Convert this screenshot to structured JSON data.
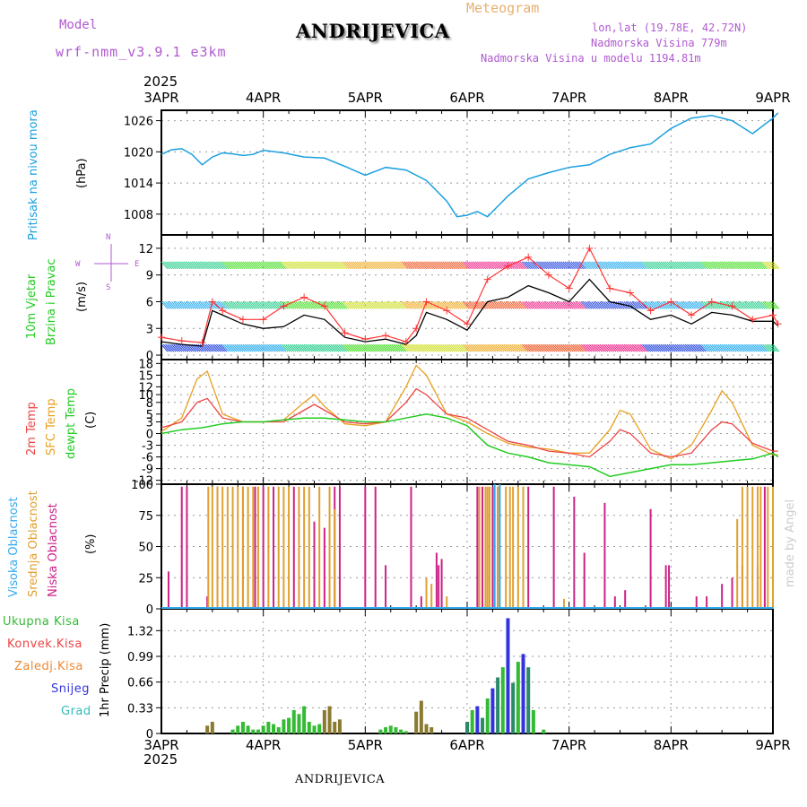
{
  "header": {
    "model_label": "Model",
    "model_name": "wrf-nmm_v3.9.1 e3km",
    "title": "ANDRIJEVICA",
    "meteogram": "Meteogram",
    "lonlat": "lon,lat (19.78E, 42.72N)",
    "elevation": "Nadmorska Visina 779m",
    "model_elevation": "Nadmorska Visina u modelu 1194.81m",
    "footer_title": "ANDRIJEVICA",
    "credit": "made by Angel"
  },
  "colors": {
    "pressure": "#1aa0e0",
    "wind_label": "#22cc22",
    "wind_speed": "#000000",
    "gust": "#ff3333",
    "temp2m": "#ee4444",
    "sfc": "#e8a020",
    "dew": "#22cc22",
    "cloud_high": "#33aaee",
    "cloud_mid": "#e0a030",
    "cloud_low": "#cc2288",
    "precip_total": "#33bb33",
    "precip_conv": "#ee4444",
    "precip_frozen": "#ee8833",
    "precip_snow": "#3333dd",
    "precip_graupel": "#33bbbb"
  },
  "time_axis": {
    "year": "2025",
    "labels": [
      "3APR",
      "4APR",
      "5APR",
      "6APR",
      "7APR",
      "8APR",
      "9APR"
    ]
  },
  "chart_data": [
    {
      "type": "line",
      "name": "pressure",
      "title": "Pritisak na nivou mora",
      "ylabel": "(hPa)",
      "ylim": [
        1004,
        1028
      ],
      "yticks": [
        1008,
        1014,
        1020,
        1026
      ],
      "x": [
        0,
        0.1,
        0.2,
        0.3,
        0.4,
        0.5,
        0.6,
        0.7,
        0.8,
        0.9,
        1,
        1.2,
        1.4,
        1.6,
        1.8,
        2,
        2.2,
        2.4,
        2.6,
        2.8,
        2.9,
        3,
        3.1,
        3.2,
        3.3,
        3.4,
        3.6,
        3.8,
        4,
        4.2,
        4.4,
        4.6,
        4.8,
        5,
        5.2,
        5.4,
        5.6,
        5.8,
        6,
        6.05
      ],
      "values": [
        1019.5,
        1020.4,
        1020.6,
        1019.5,
        1017.5,
        1019.0,
        1019.8,
        1019.6,
        1019.3,
        1019.5,
        1020.3,
        1019.8,
        1019.0,
        1018.8,
        1017.2,
        1015.5,
        1017.0,
        1016.5,
        1014.5,
        1010.5,
        1007.5,
        1007.8,
        1008.5,
        1007.5,
        1009.5,
        1011.5,
        1014.8,
        1016.0,
        1017.0,
        1017.5,
        1019.5,
        1020.8,
        1021.5,
        1024.5,
        1026.5,
        1027.0,
        1026.0,
        1023.5,
        1026.5,
        1027.5
      ]
    },
    {
      "type": "line",
      "name": "wind",
      "title": "10m Vjetar",
      "title2": "Brzina i Pravac",
      "ylabel": "(m/s)",
      "compass": [
        "N",
        "E",
        "S",
        "W"
      ],
      "ylim": [
        -0.5,
        13.5
      ],
      "yticks": [
        0,
        3,
        6,
        9,
        12
      ],
      "series": [
        {
          "name": "speed",
          "x": [
            0,
            0.2,
            0.4,
            0.5,
            0.6,
            0.8,
            1.0,
            1.2,
            1.4,
            1.6,
            1.8,
            2.0,
            2.2,
            2.4,
            2.5,
            2.6,
            2.8,
            3.0,
            3.2,
            3.4,
            3.6,
            3.8,
            4.0,
            4.2,
            4.4,
            4.6,
            4.8,
            5.0,
            5.2,
            5.4,
            5.6,
            5.8,
            6.0,
            6.05
          ],
          "values": [
            1.5,
            1.2,
            1.0,
            5.0,
            4.5,
            3.5,
            3.0,
            3.2,
            4.5,
            4.0,
            2.0,
            1.5,
            1.8,
            1.2,
            2.2,
            4.8,
            4.0,
            2.8,
            6.0,
            6.5,
            7.8,
            7.0,
            6.0,
            8.5,
            6.0,
            5.5,
            4.0,
            4.5,
            3.5,
            4.8,
            4.5,
            3.8,
            3.8,
            3.3
          ]
        },
        {
          "name": "gust",
          "x": [
            0,
            0.2,
            0.4,
            0.5,
            0.6,
            0.8,
            1.0,
            1.2,
            1.4,
            1.6,
            1.8,
            2.0,
            2.2,
            2.4,
            2.5,
            2.6,
            2.8,
            3.0,
            3.2,
            3.4,
            3.6,
            3.8,
            4.0,
            4.2,
            4.4,
            4.6,
            4.8,
            5.0,
            5.2,
            5.4,
            5.6,
            5.8,
            6.0,
            6.05
          ],
          "values": [
            2.0,
            1.6,
            1.4,
            6.0,
            5.0,
            4.0,
            4.0,
            5.5,
            6.5,
            5.5,
            2.5,
            1.8,
            2.2,
            1.5,
            3.0,
            6.0,
            5.0,
            3.5,
            8.5,
            10.0,
            11.0,
            9.0,
            7.5,
            12.0,
            7.5,
            7.0,
            5.0,
            6.0,
            4.5,
            6.0,
            5.5,
            4.0,
            4.5,
            3.5
          ]
        }
      ]
    },
    {
      "type": "line",
      "name": "temperature",
      "titles": [
        "2m Temp",
        "SFC Temp",
        "dewpt Temp"
      ],
      "ylabel": "(C)",
      "ylim": [
        -13,
        19
      ],
      "yticks": [
        -12,
        -9,
        -6,
        -3,
        0,
        3,
        5,
        8,
        10,
        12,
        15,
        18
      ],
      "series": [
        {
          "name": "2m Temp",
          "x": [
            0,
            0.2,
            0.35,
            0.45,
            0.6,
            0.8,
            1.0,
            1.2,
            1.4,
            1.5,
            1.6,
            1.8,
            2.0,
            2.2,
            2.4,
            2.5,
            2.6,
            2.8,
            3.0,
            3.2,
            3.4,
            3.6,
            3.8,
            4.0,
            4.2,
            4.4,
            4.5,
            4.6,
            4.8,
            5.0,
            5.2,
            5.4,
            5.5,
            5.6,
            5.8,
            6.0,
            6.05
          ],
          "values": [
            1.5,
            3.0,
            8.0,
            9.0,
            4.0,
            3.0,
            3.0,
            3.0,
            6.0,
            7.5,
            6.0,
            3.0,
            2.5,
            3.0,
            8.0,
            11.5,
            10.0,
            5.0,
            4.0,
            1.0,
            -2.0,
            -3.0,
            -4.5,
            -5.0,
            -6.0,
            -2.0,
            1.0,
            0.0,
            -5.0,
            -6.0,
            -5.0,
            1.0,
            3.0,
            2.5,
            -2.5,
            -4.5,
            -4.5
          ]
        },
        {
          "name": "SFC Temp",
          "x": [
            0,
            0.2,
            0.35,
            0.45,
            0.6,
            0.8,
            1.0,
            1.2,
            1.4,
            1.5,
            1.6,
            1.8,
            2.0,
            2.2,
            2.4,
            2.5,
            2.6,
            2.8,
            3.0,
            3.2,
            3.4,
            3.6,
            3.8,
            4.0,
            4.2,
            4.4,
            4.5,
            4.6,
            4.8,
            5.0,
            5.2,
            5.4,
            5.5,
            5.6,
            5.8,
            6.0,
            6.05
          ],
          "values": [
            0.5,
            4.0,
            14.0,
            16.0,
            5.0,
            3.0,
            3.0,
            3.5,
            8.0,
            10.0,
            7.0,
            2.5,
            2.0,
            3.0,
            12.0,
            17.5,
            15.0,
            5.0,
            3.0,
            0.0,
            -2.5,
            -3.5,
            -4.0,
            -5.0,
            -5.0,
            1.0,
            6.0,
            5.0,
            -4.0,
            -6.5,
            -3.0,
            6.0,
            11.0,
            8.0,
            -3.0,
            -5.5,
            -5.5
          ]
        },
        {
          "name": "dewpt Temp",
          "x": [
            0,
            0.2,
            0.4,
            0.6,
            0.8,
            1.0,
            1.2,
            1.4,
            1.6,
            1.8,
            2.0,
            2.2,
            2.4,
            2.6,
            2.8,
            3.0,
            3.2,
            3.4,
            3.6,
            3.8,
            4.0,
            4.2,
            4.4,
            4.6,
            4.8,
            5.0,
            5.2,
            5.4,
            5.6,
            5.8,
            6.0,
            6.05
          ],
          "values": [
            0.0,
            1.0,
            1.5,
            2.5,
            3.0,
            3.0,
            3.5,
            4.0,
            4.0,
            3.5,
            3.0,
            3.0,
            4.0,
            5.0,
            4.0,
            2.0,
            -3.0,
            -5.0,
            -6.0,
            -7.5,
            -8.0,
            -8.5,
            -11.0,
            -10.0,
            -9.0,
            -8.0,
            -8.0,
            -7.5,
            -7.0,
            -6.5,
            -5.0,
            -6.0
          ]
        }
      ]
    },
    {
      "type": "bar",
      "name": "cloud_cover",
      "titles": [
        "Visoka Oblacnost",
        "Srednja Oblacnost",
        "Niska Oblacnost"
      ],
      "ylabel": "(%)",
      "ylim": [
        0,
        100
      ],
      "yticks": [
        0,
        25,
        50,
        75,
        100
      ],
      "series": [
        {
          "name": "Niska",
          "x": [
            0.07,
            0.2,
            0.25,
            0.45,
            0.55,
            0.8,
            0.92,
            1.0,
            1.1,
            1.3,
            1.5,
            1.6,
            1.7,
            1.75,
            2.0,
            2.1,
            2.2,
            2.45,
            2.55,
            2.7,
            2.72,
            2.75,
            3.1,
            3.15,
            3.25,
            3.3,
            3.6,
            3.85,
            4.05,
            4.15,
            4.35,
            4.45,
            4.55,
            4.8,
            4.95,
            4.98,
            5.25,
            5.35,
            5.5,
            5.6,
            5.7,
            5.85,
            5.92,
            6.0
          ],
          "values": [
            30,
            98,
            98,
            10,
            98,
            98,
            98,
            98,
            98,
            98,
            70,
            65,
            98,
            98,
            98,
            98,
            35,
            98,
            10,
            45,
            35,
            40,
            98,
            98,
            98,
            98,
            98,
            98,
            90,
            45,
            85,
            10,
            15,
            80,
            35,
            35,
            10,
            10,
            20,
            25,
            35,
            35,
            98,
            10
          ]
        },
        {
          "name": "Srednja",
          "x": [
            0.46,
            0.5,
            0.55,
            0.6,
            0.65,
            0.7,
            0.75,
            0.8,
            0.85,
            0.9,
            0.95,
            1.05,
            1.15,
            1.2,
            1.25,
            1.35,
            1.4,
            1.45,
            1.55,
            1.65,
            1.7,
            2.6,
            2.65,
            2.8,
            3.12,
            3.18,
            3.2,
            3.22,
            3.3,
            3.38,
            3.42,
            3.45,
            3.5,
            3.55,
            3.95,
            5.65,
            5.7,
            5.75,
            5.8,
            5.85,
            5.88,
            5.95,
            6.0
          ],
          "values": [
            98,
            98,
            98,
            98,
            98,
            98,
            98,
            98,
            98,
            98,
            98,
            98,
            98,
            98,
            98,
            98,
            98,
            98,
            98,
            98,
            80,
            25,
            20,
            10,
            98,
            98,
            98,
            98,
            98,
            98,
            98,
            98,
            98,
            98,
            8,
            72,
            98,
            98,
            98,
            98,
            98,
            98,
            98
          ]
        },
        {
          "name": "Visoka",
          "x": [
            3.27,
            3.32
          ],
          "values": [
            100,
            100
          ]
        }
      ]
    },
    {
      "type": "bar",
      "name": "precipitation",
      "titles": [
        "Ukupna Kisa",
        "Konvek.Kisa",
        "Zaledj.Kisa",
        "Snijeg",
        "Grad"
      ],
      "ylabel": "1hr Precip (mm)",
      "ylim": [
        0,
        1.6
      ],
      "yticks": [
        0,
        0.33,
        0.66,
        0.99,
        1.32
      ],
      "x": [
        0.45,
        0.5,
        0.7,
        0.75,
        0.8,
        0.85,
        0.9,
        0.95,
        1.0,
        1.05,
        1.1,
        1.15,
        1.2,
        1.25,
        1.3,
        1.35,
        1.4,
        1.45,
        1.5,
        1.55,
        1.6,
        1.65,
        1.7,
        1.75,
        2.15,
        2.2,
        2.25,
        2.3,
        2.35,
        2.4,
        2.5,
        2.55,
        2.6,
        2.65,
        3.0,
        3.05,
        3.1,
        3.15,
        3.2,
        3.25,
        3.3,
        3.35,
        3.4,
        3.45,
        3.5,
        3.55,
        3.6,
        3.65,
        3.75
      ],
      "values": [
        0.1,
        0.15,
        0.05,
        0.1,
        0.15,
        0.1,
        0.05,
        0.05,
        0.1,
        0.15,
        0.12,
        0.08,
        0.18,
        0.2,
        0.3,
        0.25,
        0.35,
        0.15,
        0.1,
        0.12,
        0.3,
        0.35,
        0.15,
        0.18,
        0.05,
        0.08,
        0.1,
        0.08,
        0.05,
        0.03,
        0.28,
        0.42,
        0.12,
        0.08,
        0.15,
        0.3,
        0.35,
        0.2,
        0.45,
        0.58,
        0.72,
        0.85,
        1.48,
        0.65,
        0.92,
        1.02,
        0.85,
        0.3,
        0.05
      ]
    }
  ]
}
